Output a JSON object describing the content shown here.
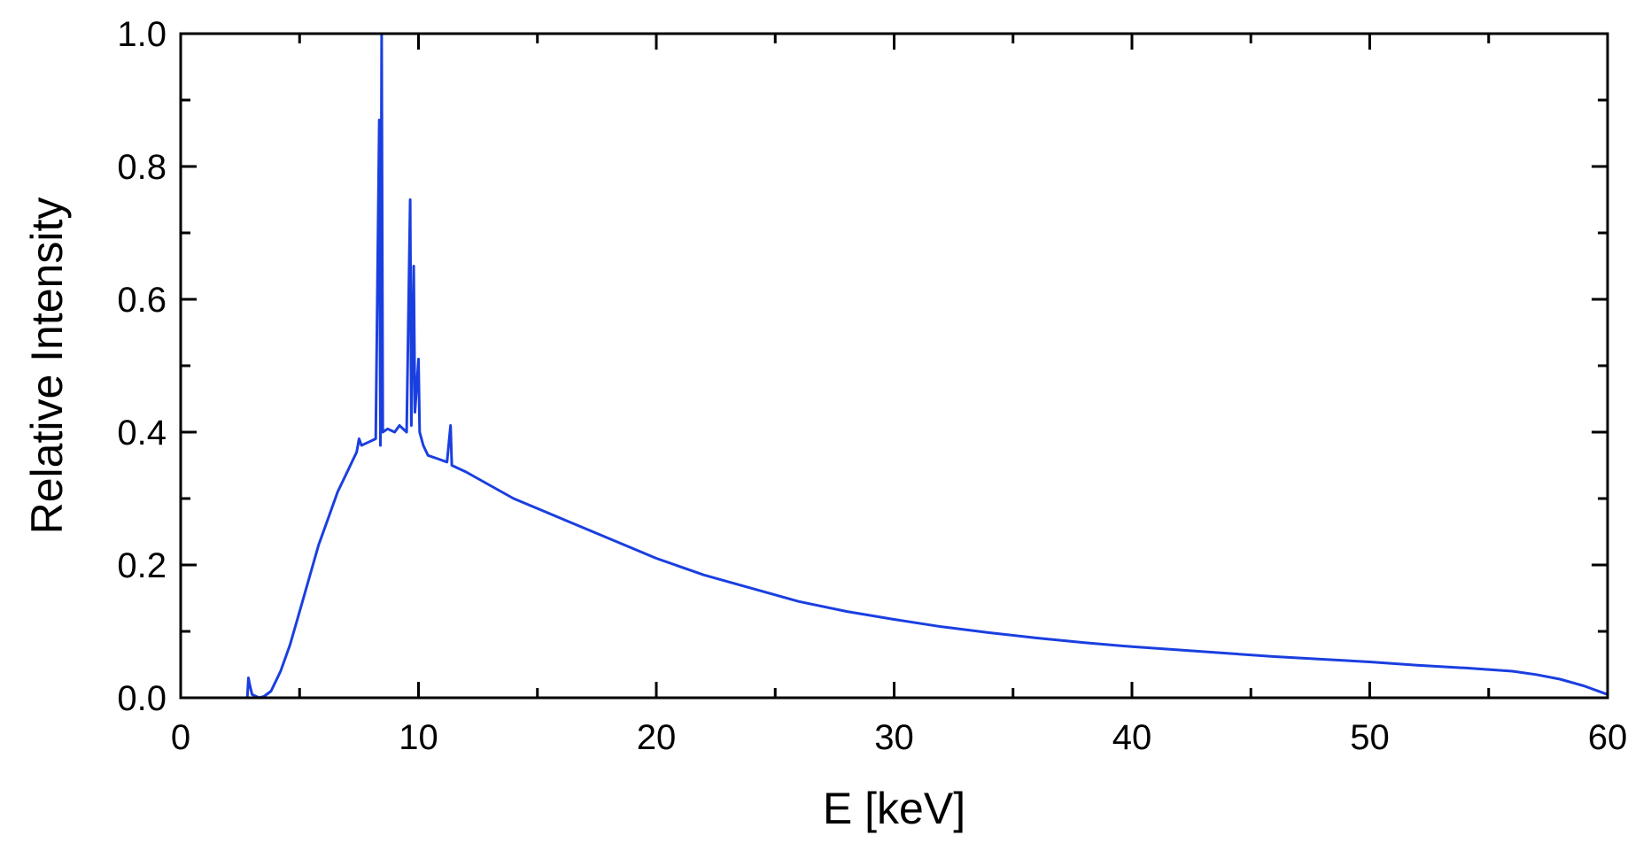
{
  "chart_data": {
    "type": "line",
    "title": "",
    "xlabel": "E [keV]",
    "ylabel": "Relative Intensity",
    "xlim": [
      0,
      60
    ],
    "ylim": [
      0,
      1.0
    ],
    "grid": false,
    "x_ticks": [
      "0",
      "10",
      "20",
      "30",
      "40",
      "50",
      "60"
    ],
    "x_tick_values": [
      0,
      10,
      20,
      30,
      40,
      50,
      60
    ],
    "y_ticks": [
      "0.0",
      "0.2",
      "0.4",
      "0.6",
      "0.8",
      "1.0"
    ],
    "y_tick_values": [
      0,
      0.2,
      0.4,
      0.6,
      0.8,
      1.0
    ],
    "series_color": "#1a3fe0",
    "series": [
      {
        "name": "",
        "points": [
          [
            0,
            0
          ],
          [
            2.8,
            0
          ],
          [
            2.85,
            0.03
          ],
          [
            2.9,
            0.02
          ],
          [
            3.0,
            0.005
          ],
          [
            3.3,
            0.0
          ],
          [
            3.5,
            0.002
          ],
          [
            3.8,
            0.01
          ],
          [
            4.2,
            0.04
          ],
          [
            4.6,
            0.08
          ],
          [
            5.0,
            0.13
          ],
          [
            5.4,
            0.18
          ],
          [
            5.8,
            0.23
          ],
          [
            6.2,
            0.27
          ],
          [
            6.6,
            0.31
          ],
          [
            7.0,
            0.34
          ],
          [
            7.4,
            0.37
          ],
          [
            7.5,
            0.39
          ],
          [
            7.6,
            0.38
          ],
          [
            7.9,
            0.385
          ],
          [
            8.2,
            0.39
          ],
          [
            8.35,
            0.87
          ],
          [
            8.4,
            0.38
          ],
          [
            8.45,
            1.0
          ],
          [
            8.5,
            0.4
          ],
          [
            8.7,
            0.405
          ],
          [
            9.0,
            0.4
          ],
          [
            9.2,
            0.41
          ],
          [
            9.5,
            0.4
          ],
          [
            9.65,
            0.75
          ],
          [
            9.7,
            0.41
          ],
          [
            9.8,
            0.65
          ],
          [
            9.85,
            0.43
          ],
          [
            10.0,
            0.51
          ],
          [
            10.05,
            0.4
          ],
          [
            10.2,
            0.38
          ],
          [
            10.4,
            0.365
          ],
          [
            10.8,
            0.36
          ],
          [
            11.2,
            0.355
          ],
          [
            11.35,
            0.41
          ],
          [
            11.4,
            0.35
          ],
          [
            12.0,
            0.34
          ],
          [
            13.0,
            0.32
          ],
          [
            14.0,
            0.3
          ],
          [
            15.0,
            0.285
          ],
          [
            16.0,
            0.27
          ],
          [
            18.0,
            0.24
          ],
          [
            20.0,
            0.21
          ],
          [
            22.0,
            0.185
          ],
          [
            24.0,
            0.165
          ],
          [
            26.0,
            0.145
          ],
          [
            28.0,
            0.13
          ],
          [
            30.0,
            0.118
          ],
          [
            32.0,
            0.107
          ],
          [
            34.0,
            0.098
          ],
          [
            36.0,
            0.09
          ],
          [
            38.0,
            0.083
          ],
          [
            40.0,
            0.077
          ],
          [
            42.0,
            0.072
          ],
          [
            44.0,
            0.067
          ],
          [
            46.0,
            0.062
          ],
          [
            48.0,
            0.058
          ],
          [
            50.0,
            0.054
          ],
          [
            52.0,
            0.049
          ],
          [
            54.0,
            0.045
          ],
          [
            56.0,
            0.04
          ],
          [
            57.0,
            0.035
          ],
          [
            58.0,
            0.028
          ],
          [
            59.0,
            0.018
          ],
          [
            60.0,
            0.005
          ]
        ]
      }
    ]
  }
}
